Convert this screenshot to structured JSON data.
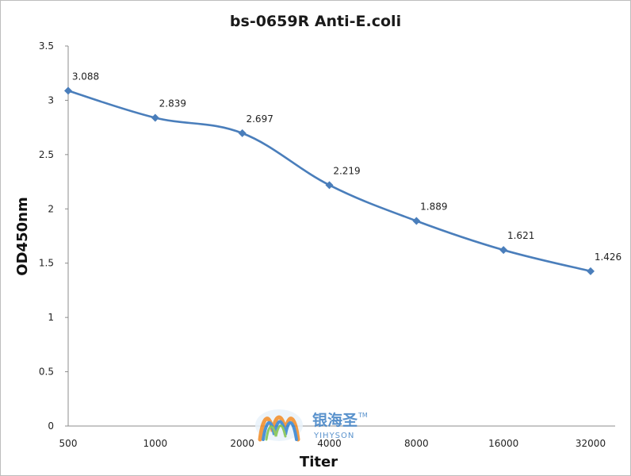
{
  "chart_data": {
    "type": "line",
    "title": "bs-0659R Anti-E.coli",
    "xlabel": "Titer",
    "ylabel": "OD450nm",
    "categories": [
      "500",
      "1000",
      "2000",
      "4000",
      "8000",
      "16000",
      "32000"
    ],
    "series": [
      {
        "values": [
          3.088,
          2.839,
          2.697,
          2.219,
          1.889,
          1.621,
          1.426
        ],
        "labels": [
          "3.088",
          "2.839",
          "2.697",
          "2.219",
          "1.889",
          "1.621",
          "1.426"
        ],
        "color": "#4a7ebb"
      }
    ],
    "ylim": [
      0,
      3.5
    ],
    "yticks": [
      "0",
      "0.5",
      "1",
      "1.5",
      "2",
      "2.5",
      "3",
      "3.5"
    ],
    "grid": false,
    "legend": "none"
  },
  "watermark": {
    "logo": "yihyson-logo-icon",
    "name_cn": "银海圣",
    "name_en": "YIHYSON",
    "tm": "TM"
  }
}
